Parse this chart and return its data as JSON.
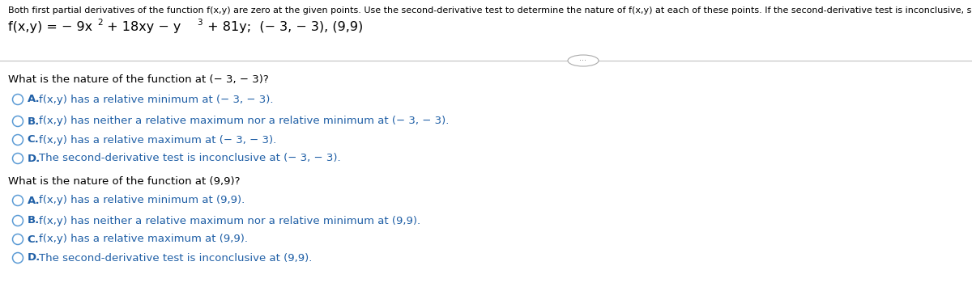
{
  "bg_color": "#ffffff",
  "instruction_text": "Both first partial derivatives of the function f(x,y) are zero at the given points. Use the second-derivative test to determine the nature of f(x,y) at each of these points. If the second-derivative test is inconclusive, so state.",
  "question1": "What is the nature of the function at (− 3, − 3)?",
  "options1": [
    {
      "label": "A.",
      "text": "  f(x,y) has a relative minimum at (− 3, − 3)."
    },
    {
      "label": "B.",
      "text": "  f(x,y) has neither a relative maximum nor a relative minimum at (− 3, − 3)."
    },
    {
      "label": "C.",
      "text": "  f(x,y) has a relative maximum at (− 3, − 3)."
    },
    {
      "label": "D.",
      "text": "  The second-derivative test is inconclusive at (− 3, − 3)."
    }
  ],
  "question2": "What is the nature of the function at (9,9)?",
  "options2": [
    {
      "label": "A.",
      "text": "  f(x,y) has a relative minimum at (9,9)."
    },
    {
      "label": "B.",
      "text": "  f(x,y) has neither a relative maximum nor a relative minimum at (9,9)."
    },
    {
      "label": "C.",
      "text": "  f(x,y) has a relative maximum at (9,9)."
    },
    {
      "label": "D.",
      "text": "  The second-derivative test is inconclusive at (9,9)."
    }
  ],
  "circle_color": "#5b9bd5",
  "text_color": "#000000",
  "label_color": "#1f5fa6",
  "option_text_color": "#1f5fa6",
  "instruction_fontsize": 8.0,
  "function_fontsize": 11.5,
  "question_fontsize": 9.5,
  "option_fontsize": 9.5,
  "separator_color": "#c0c0c0",
  "ellipsis_color": "#888888",
  "ellipsis_border": "#aaaaaa"
}
